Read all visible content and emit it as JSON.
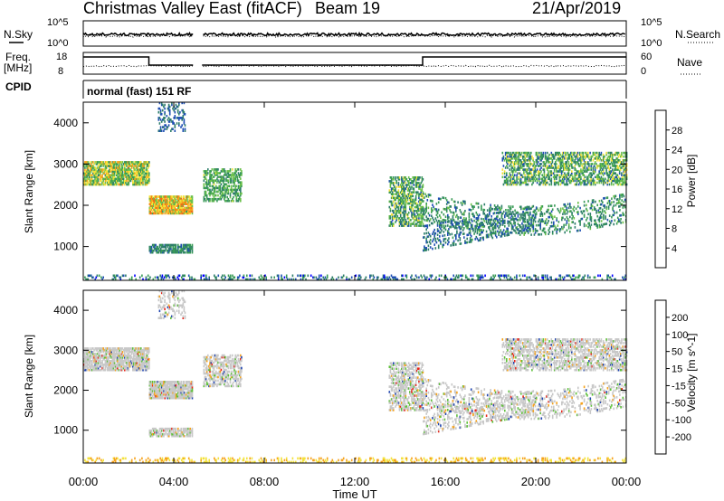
{
  "header": {
    "station": "Christmas Valley East (fitACF)",
    "beam": "Beam 19",
    "date": "21/Apr/2019"
  },
  "panels": {
    "noise": {
      "left_label": "N.Sky",
      "right_label": "N.Search",
      "left_ticks": [
        "10^5",
        "10^0"
      ],
      "right_ticks": [
        "10^5",
        "10^0"
      ]
    },
    "freq": {
      "left_label_1": "Freq.",
      "left_label_2": "[MHz]",
      "right_label": "Nave",
      "left_ticks": [
        "18",
        "8"
      ],
      "right_ticks": [
        "60",
        "0"
      ]
    },
    "cpid": {
      "label": "CPID",
      "text": "normal (fast) 151 RF"
    }
  },
  "colors": {
    "power": [
      "#0000ff",
      "#1f4fb3",
      "#2e7d6b",
      "#3a9b57",
      "#6bc04b",
      "#f3e23a",
      "#f6a21b",
      "#f06d17",
      "#e8261a"
    ],
    "velocity": [
      "#e8261a",
      "#f06d17",
      "#f6a21b",
      "#f3e23a",
      "#c8c8c8",
      "#c8c8c8",
      "#5fc03b",
      "#2e7d6b",
      "#2045b0",
      "#1a2fc9"
    ]
  },
  "chart_data": [
    {
      "type": "heatmap",
      "name": "power",
      "ylabel": "Slant Range [km]",
      "y_ticks": [
        "1000",
        "2000",
        "3000",
        "4000"
      ],
      "ylim": [
        180,
        4500
      ],
      "xlim_hours": [
        0,
        24
      ],
      "colorbar": {
        "label": "Power [dB]",
        "ticks": [
          "4",
          "8",
          "12",
          "16",
          "20",
          "24",
          "28"
        ],
        "range": [
          0,
          32
        ]
      }
    },
    {
      "type": "heatmap",
      "name": "velocity",
      "ylabel": "Slant Range [km]",
      "y_ticks": [
        "1000",
        "2000",
        "3000",
        "4000"
      ],
      "ylim": [
        180,
        4500
      ],
      "xlim_hours": [
        0,
        24
      ],
      "colorbar": {
        "label": "Velocity [m s^-1]",
        "ticks": [
          "-200",
          "-100",
          "-50",
          "-15",
          "15",
          "50",
          "100",
          "200"
        ]
      }
    }
  ],
  "xaxis": {
    "label": "Time UT",
    "ticks": [
      "00:00",
      "04:00",
      "08:00",
      "12:00",
      "16:00",
      "20:00",
      "00:00"
    ]
  }
}
